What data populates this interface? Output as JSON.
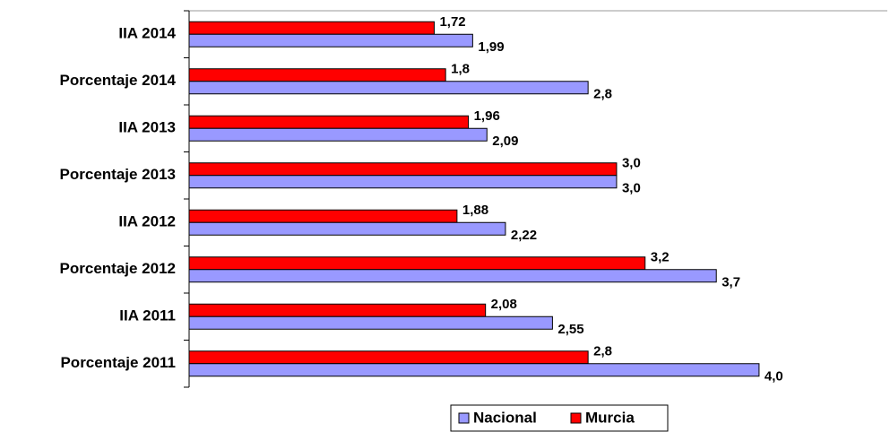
{
  "chart_data": {
    "type": "hbar",
    "categories": [
      "IIA 2014",
      "Porcentaje 2014",
      "IIA 2013",
      "Porcentaje 2013",
      "IIA 2012",
      "Porcentaje 2012",
      "IIA 2011",
      "Porcentaje 2011"
    ],
    "series": [
      {
        "name": "Nacional",
        "color": "#9999ff",
        "values": [
          1.99,
          2.8,
          2.09,
          3.0,
          2.22,
          3.7,
          2.55,
          4.0
        ],
        "value_labels": [
          "1,99",
          "2,8",
          "2,09",
          "3,0",
          "2,22",
          "3,7",
          "2,55",
          "4,0"
        ]
      },
      {
        "name": "Murcia",
        "color": "#ff0000",
        "values": [
          1.72,
          1.8,
          1.96,
          3.0,
          1.88,
          3.2,
          2.08,
          2.8
        ],
        "value_labels": [
          "1,72",
          "1,8",
          "1,96",
          "3,0",
          "1,88",
          "3,2",
          "2,08",
          "2,8"
        ]
      }
    ],
    "xlim": [
      0,
      4.9
    ],
    "legend": "bottom"
  }
}
